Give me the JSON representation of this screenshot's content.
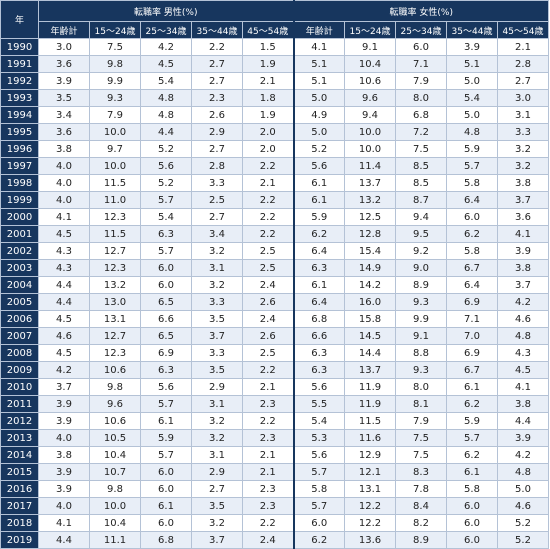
{
  "header": {
    "year_label": "年",
    "male_group": "転職率 男性(%)",
    "female_group": "転職率 女性(%)",
    "columns": [
      "年齢計",
      "15～24歳",
      "25～34歳",
      "35～44歳",
      "45～54歳"
    ]
  },
  "rows": [
    {
      "year": "1990",
      "m": [
        "3.0",
        "7.5",
        "4.2",
        "2.2",
        "1.5"
      ],
      "f": [
        "4.1",
        "9.1",
        "6.0",
        "3.9",
        "2.1"
      ]
    },
    {
      "year": "1991",
      "m": [
        "3.6",
        "9.8",
        "4.5",
        "2.7",
        "1.9"
      ],
      "f": [
        "5.1",
        "10.4",
        "7.1",
        "5.1",
        "2.8"
      ]
    },
    {
      "year": "1992",
      "m": [
        "3.9",
        "9.9",
        "5.4",
        "2.7",
        "2.1"
      ],
      "f": [
        "5.1",
        "10.6",
        "7.9",
        "5.0",
        "2.7"
      ]
    },
    {
      "year": "1993",
      "m": [
        "3.5",
        "9.3",
        "4.8",
        "2.3",
        "1.8"
      ],
      "f": [
        "5.0",
        "9.6",
        "8.0",
        "5.4",
        "3.0"
      ]
    },
    {
      "year": "1994",
      "m": [
        "3.4",
        "7.9",
        "4.8",
        "2.6",
        "1.9"
      ],
      "f": [
        "4.9",
        "9.4",
        "6.8",
        "5.0",
        "3.1"
      ]
    },
    {
      "year": "1995",
      "m": [
        "3.6",
        "10.0",
        "4.4",
        "2.9",
        "2.0"
      ],
      "f": [
        "5.0",
        "10.0",
        "7.2",
        "4.8",
        "3.3"
      ]
    },
    {
      "year": "1996",
      "m": [
        "3.8",
        "9.7",
        "5.2",
        "2.7",
        "2.0"
      ],
      "f": [
        "5.2",
        "10.0",
        "7.5",
        "5.9",
        "3.2"
      ]
    },
    {
      "year": "1997",
      "m": [
        "4.0",
        "10.0",
        "5.6",
        "2.8",
        "2.2"
      ],
      "f": [
        "5.6",
        "11.4",
        "8.5",
        "5.7",
        "3.2"
      ]
    },
    {
      "year": "1998",
      "m": [
        "4.0",
        "11.5",
        "5.2",
        "3.3",
        "2.1"
      ],
      "f": [
        "6.1",
        "13.7",
        "8.5",
        "5.8",
        "3.8"
      ]
    },
    {
      "year": "1999",
      "m": [
        "4.0",
        "11.0",
        "5.7",
        "2.5",
        "2.2"
      ],
      "f": [
        "6.1",
        "13.2",
        "8.7",
        "6.4",
        "3.7"
      ]
    },
    {
      "year": "2000",
      "m": [
        "4.1",
        "12.3",
        "5.4",
        "2.7",
        "2.2"
      ],
      "f": [
        "5.9",
        "12.5",
        "9.4",
        "6.0",
        "3.6"
      ]
    },
    {
      "year": "2001",
      "m": [
        "4.5",
        "11.5",
        "6.3",
        "3.4",
        "2.2"
      ],
      "f": [
        "6.2",
        "12.8",
        "9.5",
        "6.2",
        "4.1"
      ]
    },
    {
      "year": "2002",
      "m": [
        "4.3",
        "12.7",
        "5.7",
        "3.2",
        "2.5"
      ],
      "f": [
        "6.4",
        "15.4",
        "9.2",
        "5.8",
        "3.9"
      ]
    },
    {
      "year": "2003",
      "m": [
        "4.3",
        "12.3",
        "6.0",
        "3.1",
        "2.5"
      ],
      "f": [
        "6.3",
        "14.9",
        "9.0",
        "6.7",
        "3.8"
      ]
    },
    {
      "year": "2004",
      "m": [
        "4.4",
        "13.2",
        "6.0",
        "3.2",
        "2.4"
      ],
      "f": [
        "6.1",
        "14.2",
        "8.9",
        "6.4",
        "3.7"
      ]
    },
    {
      "year": "2005",
      "m": [
        "4.4",
        "13.0",
        "6.5",
        "3.3",
        "2.6"
      ],
      "f": [
        "6.4",
        "16.0",
        "9.3",
        "6.9",
        "4.2"
      ]
    },
    {
      "year": "2006",
      "m": [
        "4.5",
        "13.1",
        "6.6",
        "3.5",
        "2.4"
      ],
      "f": [
        "6.8",
        "15.8",
        "9.9",
        "7.1",
        "4.6"
      ]
    },
    {
      "year": "2007",
      "m": [
        "4.6",
        "12.7",
        "6.5",
        "3.7",
        "2.6"
      ],
      "f": [
        "6.6",
        "14.5",
        "9.1",
        "7.0",
        "4.8"
      ]
    },
    {
      "year": "2008",
      "m": [
        "4.5",
        "12.3",
        "6.9",
        "3.3",
        "2.5"
      ],
      "f": [
        "6.3",
        "14.4",
        "8.8",
        "6.9",
        "4.3"
      ]
    },
    {
      "year": "2009",
      "m": [
        "4.2",
        "10.6",
        "6.3",
        "3.5",
        "2.2"
      ],
      "f": [
        "6.3",
        "13.7",
        "9.3",
        "6.7",
        "4.5"
      ]
    },
    {
      "year": "2010",
      "m": [
        "3.7",
        "9.8",
        "5.6",
        "2.9",
        "2.1"
      ],
      "f": [
        "5.6",
        "11.9",
        "8.0",
        "6.1",
        "4.1"
      ]
    },
    {
      "year": "2011",
      "m": [
        "3.9",
        "9.6",
        "5.7",
        "3.1",
        "2.3"
      ],
      "f": [
        "5.5",
        "11.9",
        "8.1",
        "6.2",
        "3.8"
      ]
    },
    {
      "year": "2012",
      "m": [
        "3.9",
        "10.6",
        "6.1",
        "3.2",
        "2.2"
      ],
      "f": [
        "5.4",
        "11.5",
        "7.9",
        "5.9",
        "4.4"
      ]
    },
    {
      "year": "2013",
      "m": [
        "4.0",
        "10.5",
        "5.9",
        "3.2",
        "2.3"
      ],
      "f": [
        "5.3",
        "11.6",
        "7.5",
        "5.7",
        "3.9"
      ]
    },
    {
      "year": "2014",
      "m": [
        "3.8",
        "10.4",
        "5.7",
        "3.1",
        "2.1"
      ],
      "f": [
        "5.6",
        "12.9",
        "7.5",
        "6.2",
        "4.2"
      ]
    },
    {
      "year": "2015",
      "m": [
        "3.9",
        "10.7",
        "6.0",
        "2.9",
        "2.1"
      ],
      "f": [
        "5.7",
        "12.1",
        "8.3",
        "6.1",
        "4.8"
      ]
    },
    {
      "year": "2016",
      "m": [
        "3.9",
        "9.8",
        "6.0",
        "2.7",
        "2.3"
      ],
      "f": [
        "5.8",
        "13.1",
        "7.8",
        "5.8",
        "5.0"
      ]
    },
    {
      "year": "2017",
      "m": [
        "4.0",
        "10.0",
        "6.1",
        "3.5",
        "2.3"
      ],
      "f": [
        "5.7",
        "12.2",
        "8.4",
        "6.0",
        "4.6"
      ]
    },
    {
      "year": "2018",
      "m": [
        "4.1",
        "10.4",
        "6.0",
        "3.2",
        "2.2"
      ],
      "f": [
        "6.0",
        "12.2",
        "8.2",
        "6.0",
        "5.2"
      ]
    },
    {
      "year": "2019",
      "m": [
        "4.4",
        "11.1",
        "6.8",
        "3.7",
        "2.4"
      ],
      "f": [
        "6.2",
        "13.6",
        "8.9",
        "6.0",
        "5.2"
      ]
    }
  ]
}
